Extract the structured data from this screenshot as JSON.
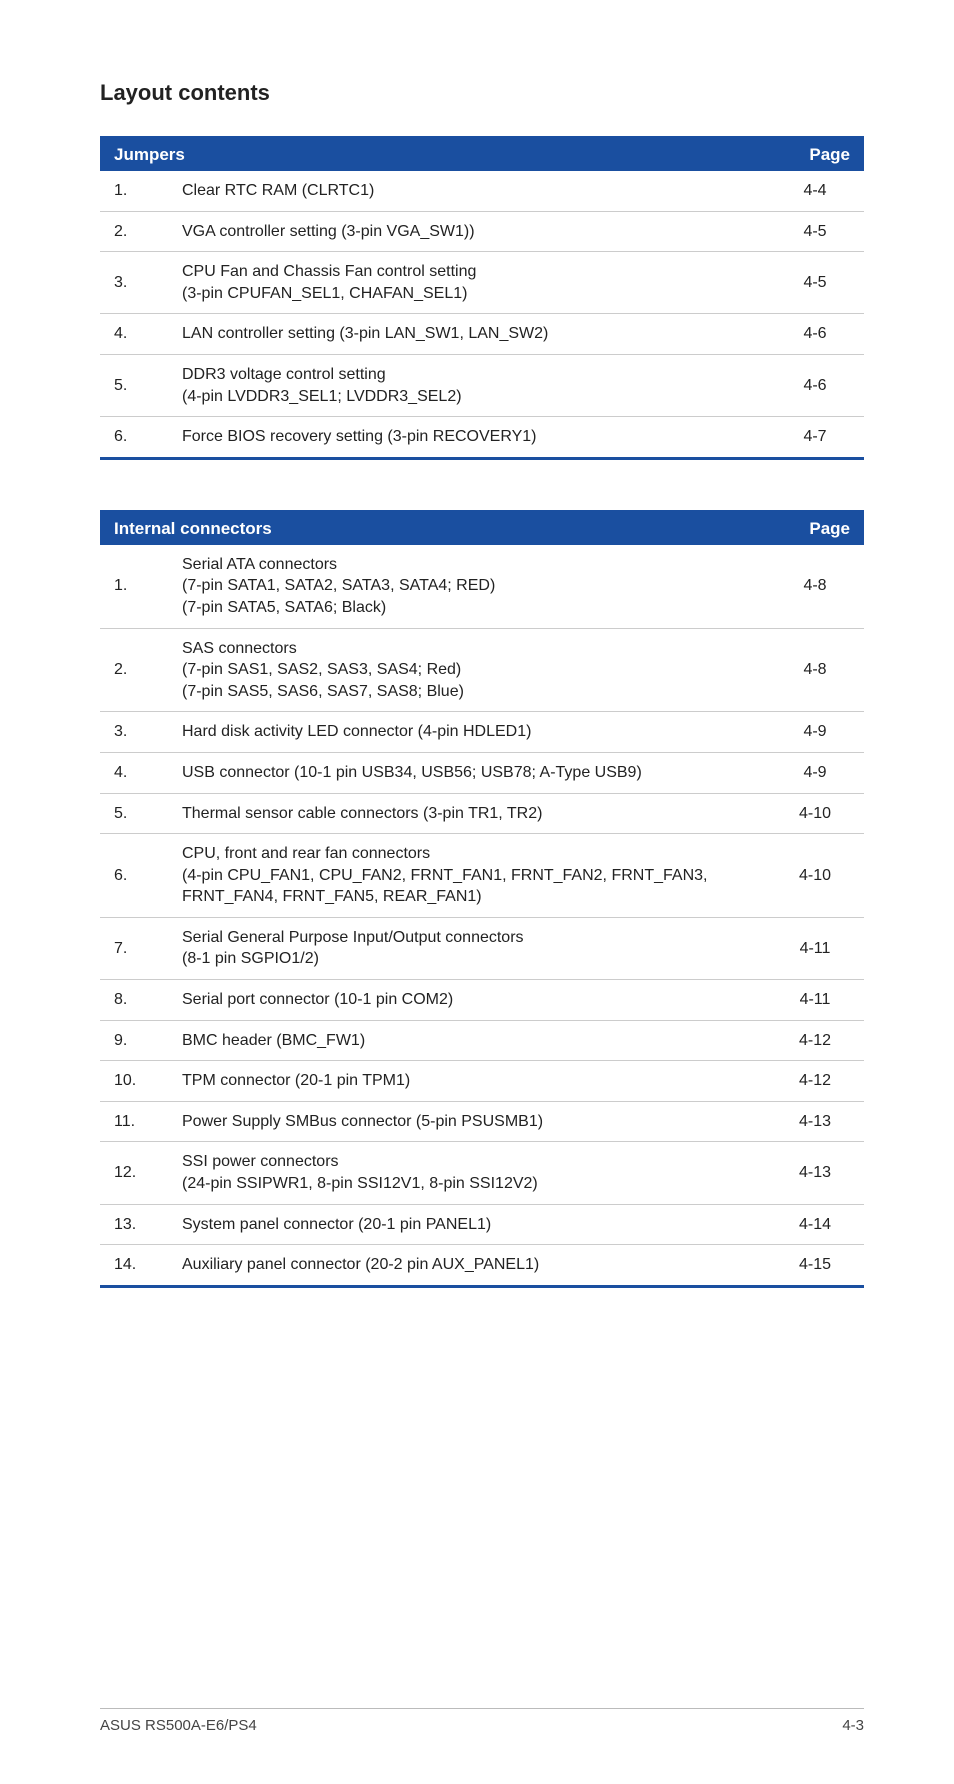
{
  "section_title": "Layout contents",
  "colors": {
    "header_bg": "#1a4fa0",
    "header_text": "#ffffff",
    "row_border": "#cccccc",
    "table_border": "#1a4fa0",
    "footer_border": "#bbbbbb",
    "text": "#222222"
  },
  "jumpers_table": {
    "columns": [
      "Jumpers",
      "Page"
    ],
    "rows": [
      {
        "num": "1.",
        "desc": "Clear RTC RAM (CLRTC1)",
        "page": "4-4"
      },
      {
        "num": "2.",
        "desc": "VGA controller setting (3-pin VGA_SW1))",
        "page": "4-5"
      },
      {
        "num": "3.",
        "desc": "CPU Fan and Chassis Fan control setting\n(3-pin CPUFAN_SEL1, CHAFAN_SEL1)",
        "page": "4-5"
      },
      {
        "num": "4.",
        "desc": "LAN controller setting (3-pin LAN_SW1, LAN_SW2)",
        "page": "4-6"
      },
      {
        "num": "5.",
        "desc": "DDR3 voltage control setting\n(4-pin LVDDR3_SEL1; LVDDR3_SEL2)",
        "page": "4-6"
      },
      {
        "num": "6.",
        "desc": "Force BIOS recovery setting (3-pin RECOVERY1)",
        "page": "4-7"
      }
    ]
  },
  "connectors_table": {
    "columns": [
      "Internal connectors",
      "Page"
    ],
    "rows": [
      {
        "num": "1.",
        "desc": "Serial ATA connectors\n(7-pin SATA1, SATA2, SATA3, SATA4; RED)\n(7-pin SATA5, SATA6; Black)",
        "page": "4-8"
      },
      {
        "num": "2.",
        "desc": "SAS connectors\n(7-pin SAS1, SAS2, SAS3, SAS4; Red)\n(7-pin SAS5, SAS6, SAS7, SAS8; Blue)",
        "page": "4-8"
      },
      {
        "num": "3.",
        "desc": "Hard disk activity LED connector (4-pin HDLED1)",
        "page": "4-9"
      },
      {
        "num": "4.",
        "desc": "USB connector (10-1 pin USB34, USB56; USB78; A-Type USB9)",
        "page": "4-9"
      },
      {
        "num": "5.",
        "desc": "Thermal sensor cable connectors (3-pin TR1, TR2)",
        "page": "4-10"
      },
      {
        "num": "6.",
        "desc": "CPU, front and rear fan connectors\n(4-pin CPU_FAN1, CPU_FAN2, FRNT_FAN1, FRNT_FAN2, FRNT_FAN3, FRNT_FAN4, FRNT_FAN5, REAR_FAN1)",
        "page": "4-10"
      },
      {
        "num": "7.",
        "desc": "Serial General Purpose Input/Output connectors\n(8-1 pin SGPIO1/2)",
        "page": "4-11"
      },
      {
        "num": "8.",
        "desc": "Serial port connector (10-1 pin COM2)",
        "page": "4-11"
      },
      {
        "num": "9.",
        "desc": "BMC header (BMC_FW1)",
        "page": "4-12"
      },
      {
        "num": "10.",
        "desc": "TPM connector (20-1 pin TPM1)",
        "page": "4-12"
      },
      {
        "num": "11.",
        "desc": "Power Supply SMBus connector (5-pin PSUSMB1)",
        "page": "4-13"
      },
      {
        "num": "12.",
        "desc": "SSI power connectors\n(24-pin SSIPWR1, 8-pin SSI12V1, 8-pin SSI12V2)",
        "page": "4-13"
      },
      {
        "num": "13.",
        "desc": "System panel connector (20-1 pin PANEL1)",
        "page": "4-14"
      },
      {
        "num": "14.",
        "desc": "Auxiliary panel connector (20-2 pin AUX_PANEL1)",
        "page": "4-15"
      }
    ]
  },
  "footer": {
    "left": "ASUS RS500A-E6/PS4",
    "right": "4-3"
  }
}
